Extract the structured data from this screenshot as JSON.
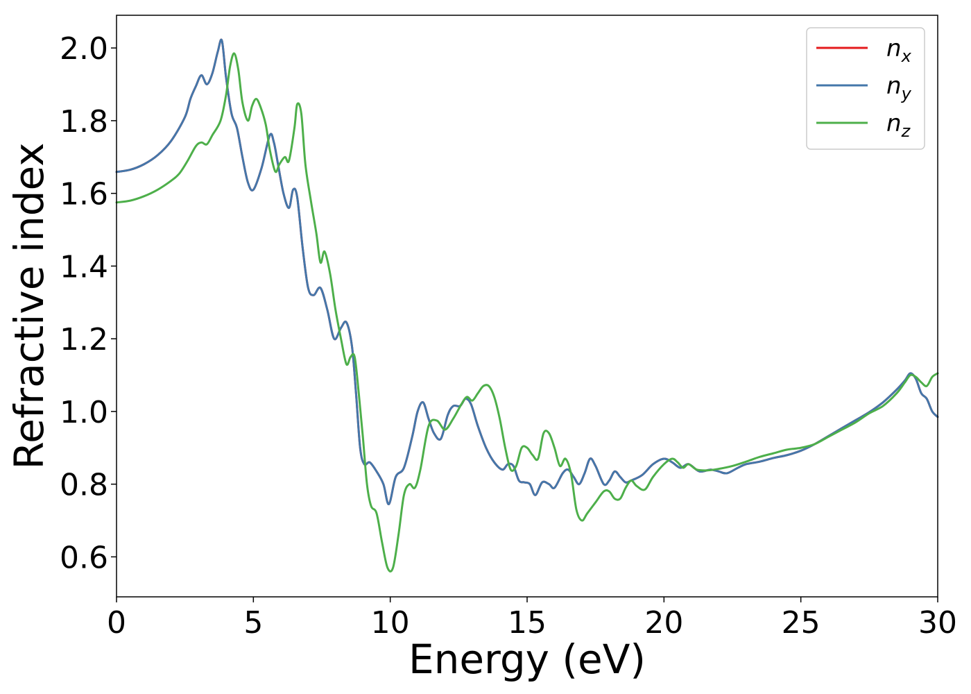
{
  "chart_data": {
    "type": "line",
    "xlabel": "Energy (eV)",
    "ylabel": "Refractive index",
    "xlim": [
      0,
      30
    ],
    "ylim": [
      0.49,
      2.09
    ],
    "x_ticks": [
      0,
      5,
      10,
      15,
      20,
      25,
      30
    ],
    "y_ticks": [
      0.6,
      0.8,
      1.0,
      1.2,
      1.4,
      1.6,
      1.8,
      2.0
    ],
    "x_tick_labels": [
      "0",
      "5",
      "10",
      "15",
      "20",
      "25",
      "30"
    ],
    "y_tick_labels": [
      "0.6",
      "0.8",
      "1.0",
      "1.2",
      "1.4",
      "1.6",
      "1.8",
      "2.0"
    ],
    "grid": false,
    "legend_position": "top-right",
    "series": [
      {
        "name": "n_x",
        "legend_base": "n",
        "legend_sub": "x",
        "color": "#e41a1c",
        "x": [
          0,
          0.5,
          1,
          1.5,
          2,
          2.5,
          2.7,
          2.9,
          3.1,
          3.3,
          3.5,
          3.7,
          3.85,
          4.0,
          4.2,
          4.4,
          4.6,
          4.8,
          5.0,
          5.3,
          5.6,
          5.75,
          5.9,
          6.1,
          6.3,
          6.45,
          6.6,
          6.8,
          7.0,
          7.2,
          7.45,
          7.7,
          7.95,
          8.2,
          8.4,
          8.6,
          8.75,
          8.9,
          9.05,
          9.25,
          9.5,
          9.75,
          9.95,
          10.2,
          10.5,
          10.8,
          11.0,
          11.2,
          11.4,
          11.6,
          11.85,
          12.1,
          12.3,
          12.55,
          12.75,
          12.95,
          13.2,
          13.5,
          13.8,
          14.1,
          14.3,
          14.5,
          14.7,
          14.9,
          15.1,
          15.3,
          15.55,
          15.8,
          16.0,
          16.3,
          16.5,
          16.7,
          16.9,
          17.1,
          17.3,
          17.5,
          17.8,
          18.0,
          18.2,
          18.4,
          18.6,
          18.8,
          19.2,
          19.6,
          20.0,
          20.3,
          20.6,
          20.9,
          21.3,
          21.7,
          22.0,
          22.3,
          22.7,
          23.0,
          23.5,
          24.0,
          24.5,
          25.0,
          25.5,
          26.0,
          26.5,
          27.0,
          27.5,
          28.0,
          28.5,
          28.8,
          29.0,
          29.2,
          29.4,
          29.6,
          29.8,
          30.0
        ],
        "values": [
          1.659,
          1.665,
          1.68,
          1.705,
          1.745,
          1.81,
          1.86,
          1.895,
          1.925,
          1.9,
          1.93,
          1.99,
          2.02,
          1.92,
          1.82,
          1.78,
          1.7,
          1.63,
          1.61,
          1.67,
          1.76,
          1.74,
          1.68,
          1.6,
          1.56,
          1.61,
          1.59,
          1.45,
          1.34,
          1.32,
          1.34,
          1.28,
          1.2,
          1.23,
          1.245,
          1.18,
          1.05,
          0.9,
          0.855,
          0.86,
          0.835,
          0.8,
          0.745,
          0.82,
          0.845,
          0.93,
          1.0,
          1.025,
          0.98,
          0.94,
          0.925,
          0.99,
          1.015,
          1.015,
          1.035,
          1.02,
          0.96,
          0.9,
          0.86,
          0.84,
          0.855,
          0.85,
          0.81,
          0.805,
          0.8,
          0.77,
          0.805,
          0.8,
          0.79,
          0.83,
          0.84,
          0.82,
          0.8,
          0.83,
          0.87,
          0.85,
          0.8,
          0.81,
          0.835,
          0.82,
          0.805,
          0.81,
          0.825,
          0.855,
          0.87,
          0.86,
          0.845,
          0.855,
          0.835,
          0.84,
          0.835,
          0.83,
          0.845,
          0.855,
          0.862,
          0.872,
          0.88,
          0.892,
          0.91,
          0.932,
          0.954,
          0.976,
          0.998,
          1.025,
          1.06,
          1.085,
          1.105,
          1.09,
          1.05,
          1.035,
          1.0,
          0.985
        ]
      },
      {
        "name": "n_y",
        "legend_base": "n",
        "legend_sub": "y",
        "color": "#4477aa",
        "x": [
          0,
          0.5,
          1,
          1.5,
          2,
          2.5,
          2.7,
          2.9,
          3.1,
          3.3,
          3.5,
          3.7,
          3.85,
          4.0,
          4.2,
          4.4,
          4.6,
          4.8,
          5.0,
          5.3,
          5.6,
          5.75,
          5.9,
          6.1,
          6.3,
          6.45,
          6.6,
          6.8,
          7.0,
          7.2,
          7.45,
          7.7,
          7.95,
          8.2,
          8.4,
          8.6,
          8.75,
          8.9,
          9.05,
          9.25,
          9.5,
          9.75,
          9.95,
          10.2,
          10.5,
          10.8,
          11.0,
          11.2,
          11.4,
          11.6,
          11.85,
          12.1,
          12.3,
          12.55,
          12.75,
          12.95,
          13.2,
          13.5,
          13.8,
          14.1,
          14.3,
          14.5,
          14.7,
          14.9,
          15.1,
          15.3,
          15.55,
          15.8,
          16.0,
          16.3,
          16.5,
          16.7,
          16.9,
          17.1,
          17.3,
          17.5,
          17.8,
          18.0,
          18.2,
          18.4,
          18.6,
          18.8,
          19.2,
          19.6,
          20.0,
          20.3,
          20.6,
          20.9,
          21.3,
          21.7,
          22.0,
          22.3,
          22.7,
          23.0,
          23.5,
          24.0,
          24.5,
          25.0,
          25.5,
          26.0,
          26.5,
          27.0,
          27.5,
          28.0,
          28.5,
          28.8,
          29.0,
          29.2,
          29.4,
          29.6,
          29.8,
          30.0
        ],
        "values": [
          1.659,
          1.665,
          1.68,
          1.705,
          1.745,
          1.81,
          1.86,
          1.895,
          1.925,
          1.9,
          1.93,
          1.99,
          2.02,
          1.92,
          1.82,
          1.78,
          1.7,
          1.63,
          1.61,
          1.67,
          1.76,
          1.74,
          1.68,
          1.6,
          1.56,
          1.61,
          1.59,
          1.45,
          1.34,
          1.32,
          1.34,
          1.28,
          1.2,
          1.23,
          1.245,
          1.18,
          1.05,
          0.9,
          0.855,
          0.86,
          0.835,
          0.8,
          0.745,
          0.82,
          0.845,
          0.93,
          1.0,
          1.025,
          0.98,
          0.94,
          0.925,
          0.99,
          1.015,
          1.015,
          1.035,
          1.02,
          0.96,
          0.9,
          0.86,
          0.84,
          0.855,
          0.85,
          0.81,
          0.805,
          0.8,
          0.77,
          0.805,
          0.8,
          0.79,
          0.83,
          0.84,
          0.82,
          0.8,
          0.83,
          0.87,
          0.85,
          0.8,
          0.81,
          0.835,
          0.82,
          0.805,
          0.81,
          0.825,
          0.855,
          0.87,
          0.86,
          0.845,
          0.855,
          0.835,
          0.84,
          0.835,
          0.83,
          0.845,
          0.855,
          0.862,
          0.872,
          0.88,
          0.892,
          0.91,
          0.932,
          0.954,
          0.976,
          0.998,
          1.025,
          1.06,
          1.085,
          1.105,
          1.09,
          1.05,
          1.035,
          1.0,
          0.985
        ]
      },
      {
        "name": "n_z",
        "legend_base": "n",
        "legend_sub": "z",
        "color": "#4daf4a",
        "x": [
          0,
          0.5,
          1,
          1.5,
          2,
          2.3,
          2.6,
          2.9,
          3.1,
          3.3,
          3.5,
          3.8,
          4.0,
          4.15,
          4.3,
          4.45,
          4.6,
          4.8,
          4.95,
          5.1,
          5.25,
          5.45,
          5.6,
          5.8,
          5.95,
          6.15,
          6.3,
          6.5,
          6.6,
          6.75,
          6.9,
          7.1,
          7.3,
          7.45,
          7.6,
          7.8,
          8.0,
          8.2,
          8.4,
          8.55,
          8.7,
          8.85,
          9.0,
          9.15,
          9.3,
          9.5,
          9.7,
          9.9,
          10.1,
          10.3,
          10.5,
          10.7,
          10.9,
          11.1,
          11.4,
          11.7,
          12.0,
          12.3,
          12.6,
          12.8,
          13.0,
          13.2,
          13.4,
          13.6,
          13.8,
          14.0,
          14.2,
          14.4,
          14.6,
          14.8,
          15.0,
          15.2,
          15.4,
          15.6,
          15.8,
          16.0,
          16.2,
          16.4,
          16.6,
          16.8,
          17.0,
          17.2,
          17.5,
          17.8,
          18.0,
          18.2,
          18.4,
          18.6,
          18.8,
          19.0,
          19.3,
          19.6,
          20.0,
          20.3,
          20.5,
          20.7,
          20.9,
          21.2,
          21.6,
          22.0,
          22.5,
          23.0,
          23.5,
          24.0,
          24.5,
          25.0,
          25.5,
          26.0,
          26.5,
          27.0,
          27.5,
          28.0,
          28.5,
          28.8,
          29.0,
          29.2,
          29.4,
          29.6,
          29.8,
          30.0
        ],
        "values": [
          1.575,
          1.58,
          1.592,
          1.61,
          1.635,
          1.655,
          1.69,
          1.73,
          1.74,
          1.735,
          1.76,
          1.8,
          1.87,
          1.95,
          1.985,
          1.94,
          1.85,
          1.8,
          1.84,
          1.86,
          1.84,
          1.79,
          1.72,
          1.66,
          1.68,
          1.7,
          1.69,
          1.78,
          1.845,
          1.82,
          1.68,
          1.58,
          1.49,
          1.41,
          1.44,
          1.38,
          1.28,
          1.2,
          1.13,
          1.15,
          1.15,
          1.05,
          0.93,
          0.8,
          0.74,
          0.72,
          0.64,
          0.57,
          0.57,
          0.66,
          0.77,
          0.8,
          0.79,
          0.84,
          0.96,
          0.975,
          0.95,
          0.98,
          1.02,
          1.04,
          1.03,
          1.05,
          1.07,
          1.07,
          1.04,
          0.98,
          0.9,
          0.84,
          0.85,
          0.9,
          0.9,
          0.88,
          0.87,
          0.94,
          0.94,
          0.9,
          0.85,
          0.87,
          0.83,
          0.73,
          0.7,
          0.72,
          0.75,
          0.78,
          0.78,
          0.76,
          0.76,
          0.79,
          0.81,
          0.795,
          0.785,
          0.82,
          0.855,
          0.87,
          0.86,
          0.845,
          0.855,
          0.84,
          0.838,
          0.842,
          0.85,
          0.862,
          0.875,
          0.885,
          0.895,
          0.9,
          0.91,
          0.93,
          0.95,
          0.97,
          0.995,
          1.015,
          1.05,
          1.08,
          1.1,
          1.095,
          1.08,
          1.07,
          1.095,
          1.105
        ]
      }
    ]
  }
}
